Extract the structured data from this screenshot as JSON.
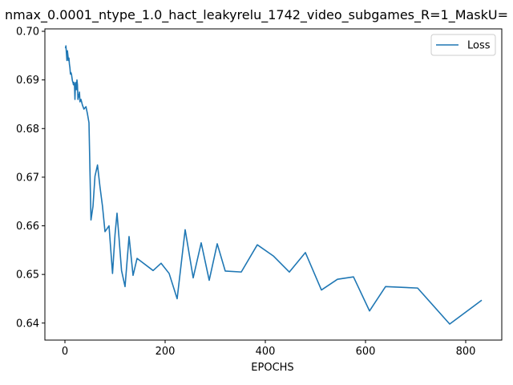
{
  "chart_data": {
    "type": "line",
    "title": "nmax_0.0001_ntype_1.0_hact_leakyrelu_1742_video_subgames_R=1_MaskU=",
    "xlabel": "EPOCHS",
    "ylabel": "",
    "xlim": [
      -40,
      872
    ],
    "ylim": [
      0.6365,
      0.7005
    ],
    "xticks": [
      0,
      200,
      400,
      600,
      800
    ],
    "yticks": [
      0.64,
      0.65,
      0.66,
      0.67,
      0.68,
      0.69,
      0.7
    ],
    "ytick_labels": [
      "0.64",
      "0.65",
      "0.66",
      "0.67",
      "0.68",
      "0.69",
      "0.70"
    ],
    "grid": false,
    "legend_position": "top-right",
    "series": [
      {
        "name": "Loss",
        "color": "#1f77b4",
        "x": [
          1,
          2,
          3,
          4,
          5,
          6,
          7,
          8,
          9,
          10,
          11,
          12,
          13,
          14,
          15,
          16,
          17,
          18,
          19,
          20,
          21,
          22,
          23,
          24,
          25,
          26,
          27,
          28,
          29,
          30,
          32,
          35,
          38,
          42,
          45,
          48,
          52,
          56,
          60,
          65,
          70,
          75,
          80,
          88,
          95,
          100,
          104,
          108,
          113,
          120,
          128,
          136,
          144,
          176,
          192,
          208,
          224,
          240,
          256,
          272,
          288,
          304,
          320,
          352,
          384,
          416,
          448,
          480,
          512,
          544,
          576,
          608,
          640,
          704,
          768,
          832
        ],
        "y": [
          0.6965,
          0.697,
          0.6955,
          0.694,
          0.696,
          0.695,
          0.694,
          0.6945,
          0.6932,
          0.6925,
          0.6912,
          0.6915,
          0.6912,
          0.6905,
          0.6898,
          0.6895,
          0.689,
          0.6895,
          0.6892,
          0.686,
          0.689,
          0.6895,
          0.688,
          0.69,
          0.689,
          0.686,
          0.687,
          0.6865,
          0.6875,
          0.6855,
          0.686,
          0.6848,
          0.684,
          0.6845,
          0.683,
          0.6812,
          0.6612,
          0.664,
          0.6702,
          0.6725,
          0.668,
          0.664,
          0.6588,
          0.66,
          0.6502,
          0.6582,
          0.6626,
          0.6575,
          0.6508,
          0.6475,
          0.6578,
          0.6498,
          0.6533,
          0.6508,
          0.6523,
          0.6502,
          0.645,
          0.6592,
          0.6493,
          0.6565,
          0.6488,
          0.6563,
          0.6507,
          0.6505,
          0.6561,
          0.6538,
          0.6505,
          0.6545,
          0.6468,
          0.649,
          0.6495,
          0.6425,
          0.6475,
          0.6472,
          0.6398,
          0.6447
        ]
      }
    ]
  }
}
